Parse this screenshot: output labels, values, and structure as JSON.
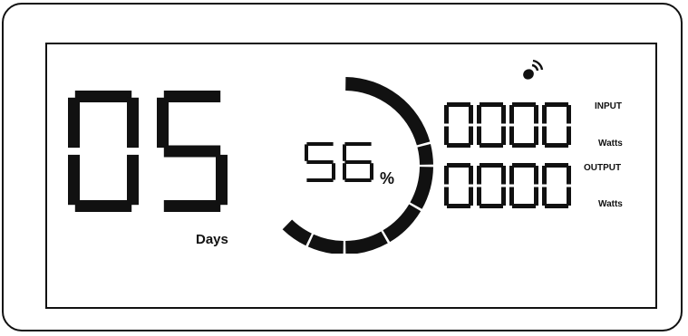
{
  "display": {
    "days": {
      "value": "05",
      "label": "Days"
    },
    "battery": {
      "percent": 56,
      "percent_text": "56",
      "percent_symbol": "%",
      "ring_segments_total": 7,
      "ring_segments_lit": 4
    },
    "input": {
      "value": "0000",
      "label": "INPUT",
      "unit": "Watts"
    },
    "output": {
      "value": "0000",
      "label": "OUTPUT",
      "unit": "Watts"
    },
    "icons": {
      "status": "wireless-signal-icon"
    },
    "colors": {
      "segment": "#111111",
      "background": "#ffffff"
    }
  }
}
